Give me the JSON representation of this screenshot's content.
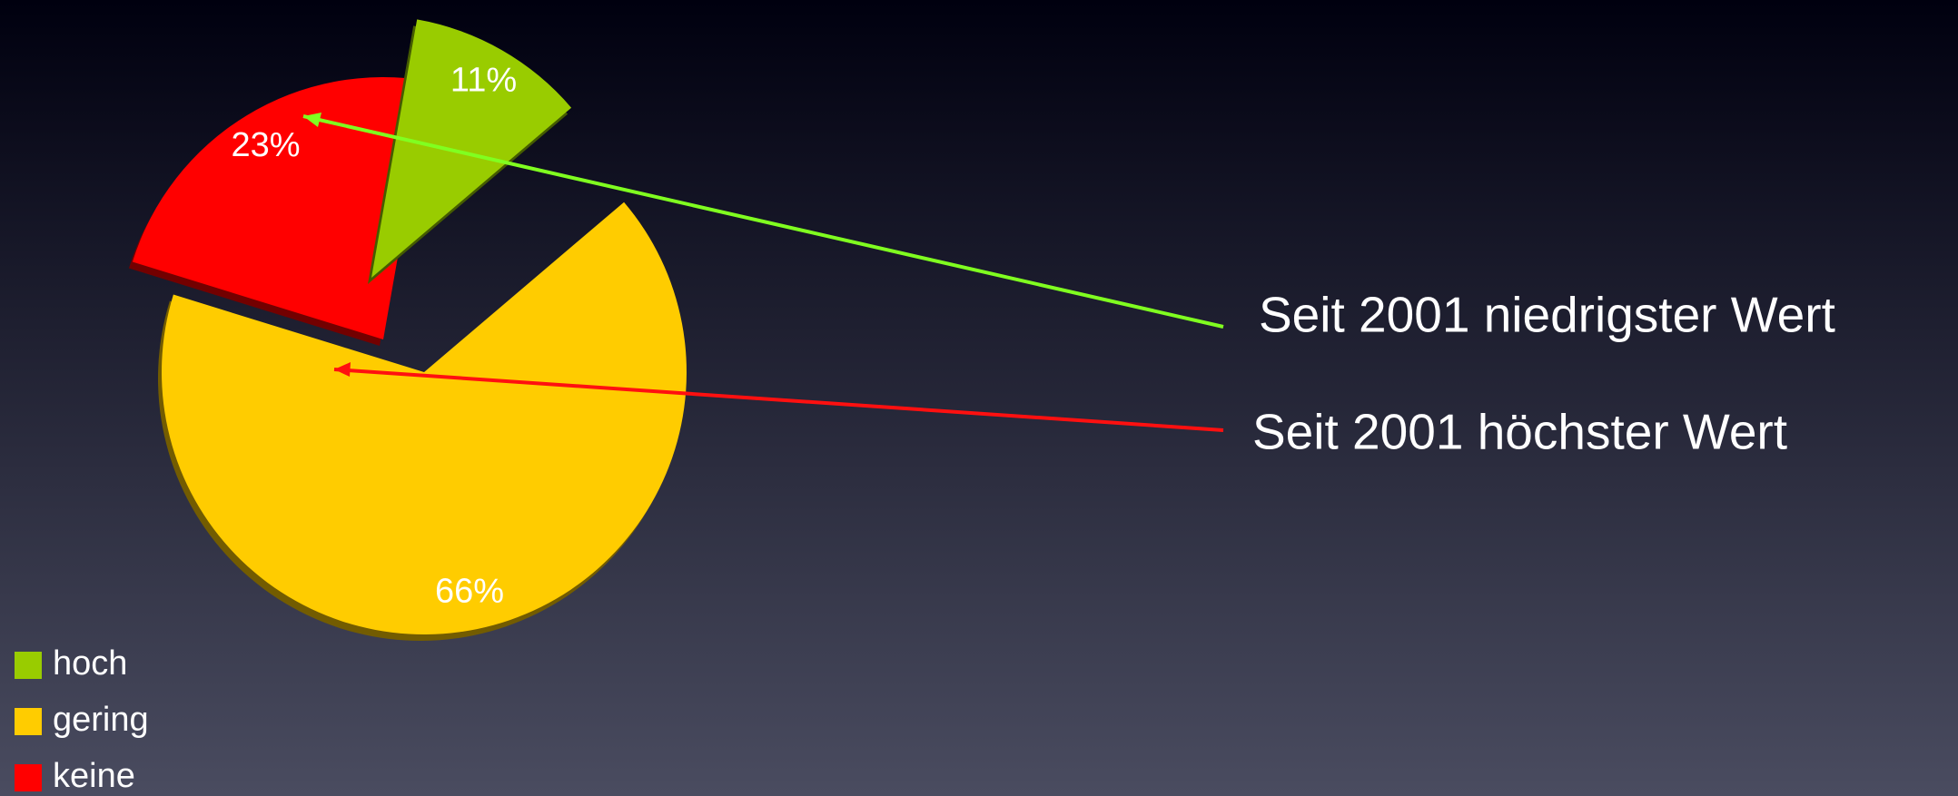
{
  "chart_data": {
    "type": "pie",
    "categories": [
      "hoch",
      "gering",
      "keine"
    ],
    "values": [
      11,
      66,
      23
    ],
    "value_labels": [
      "11%",
      "66%",
      "23%"
    ],
    "colors": [
      "#99cc00",
      "#ffcc00",
      "#ff0000"
    ],
    "annotations": [
      "Seit 2001 niedrigster Wert",
      "Seit 2001 höchster Wert"
    ],
    "legend": "bottom-left"
  }
}
